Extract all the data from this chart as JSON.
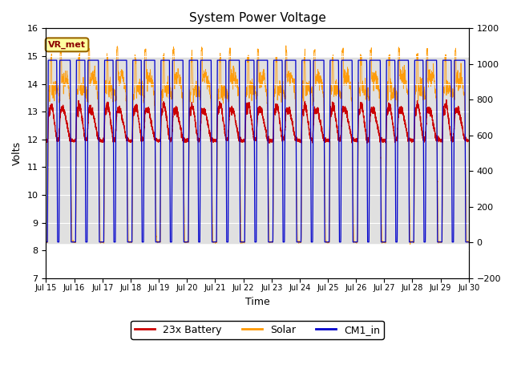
{
  "title": "System Power Voltage",
  "xlabel": "Time",
  "ylabel": "Volts",
  "ylim_left": [
    7.0,
    16.0
  ],
  "ylim_right": [
    -200,
    1200
  ],
  "yticks_left": [
    7.0,
    8.0,
    9.0,
    10.0,
    11.0,
    12.0,
    13.0,
    14.0,
    15.0,
    16.0
  ],
  "yticks_right": [
    -200,
    0,
    200,
    400,
    600,
    800,
    1000,
    1200
  ],
  "xticklabels": [
    "Jul 15",
    "Jul 16",
    "Jul 17",
    "Jul 18",
    "Jul 19",
    "Jul 20",
    "Jul 21",
    "Jul 22",
    "Jul 23",
    "Jul 24",
    "Jul 25",
    "Jul 26",
    "Jul 27",
    "Jul 28",
    "Jul 29",
    "Jul 30"
  ],
  "annotation_text": "VR_met",
  "shaded_low": 8.25,
  "shaded_high": 14.95,
  "color_battery": "#cc0000",
  "color_solar": "#ff9900",
  "color_cm1": "#0000cc",
  "legend_labels": [
    "23x Battery",
    "Solar",
    "CM1_in"
  ],
  "n_days": 15
}
